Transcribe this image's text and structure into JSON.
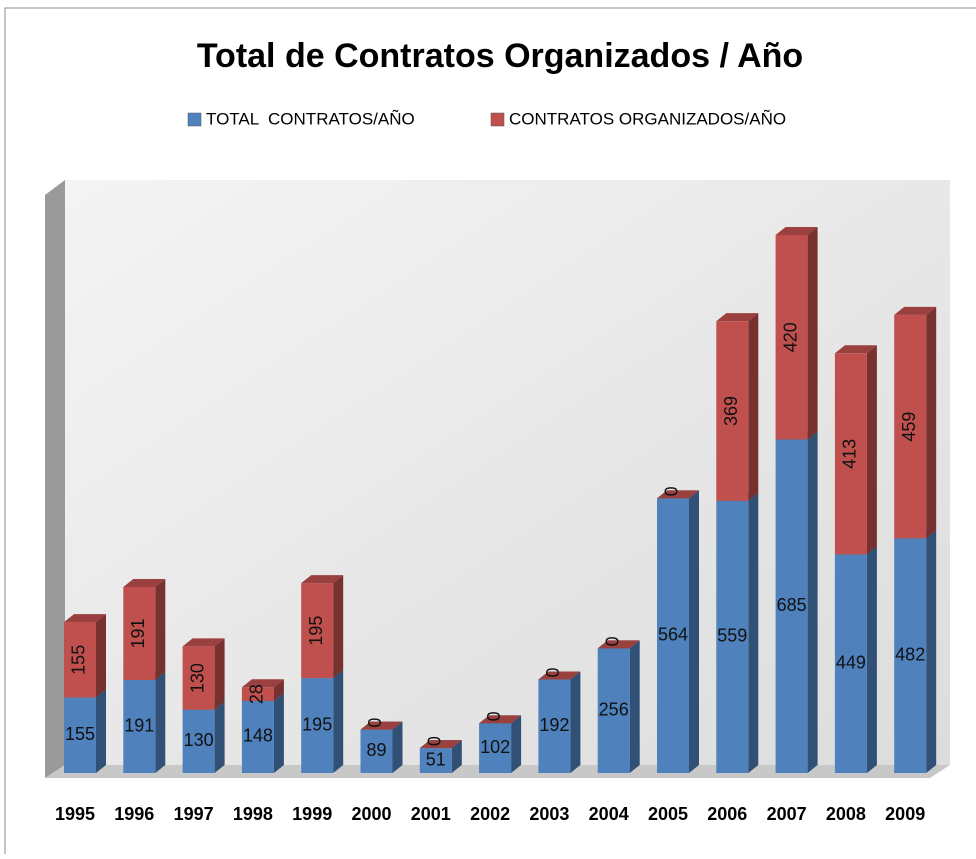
{
  "chart_data": {
    "type": "bar",
    "stacked": true,
    "title": "Total de Contratos Organizados / Año",
    "categories": [
      "1995",
      "1996",
      "1997",
      "1998",
      "1999",
      "2000",
      "2001",
      "2002",
      "2003",
      "2004",
      "2005",
      "2006",
      "2007",
      "2008",
      "2009"
    ],
    "series": [
      {
        "name": "TOTAL  CONTRATOS/AÑO",
        "color": "#4f81bd",
        "values": [
          155,
          191,
          130,
          148,
          195,
          89,
          51,
          102,
          192,
          256,
          564,
          559,
          685,
          449,
          482
        ]
      },
      {
        "name": "CONTRATOS ORGANIZADOS/AÑO",
        "color": "#c0504d",
        "values": [
          155,
          191,
          130,
          28,
          195,
          0,
          0,
          0,
          0,
          0,
          0,
          369,
          420,
          413,
          459
        ]
      }
    ],
    "legend": "top"
  }
}
